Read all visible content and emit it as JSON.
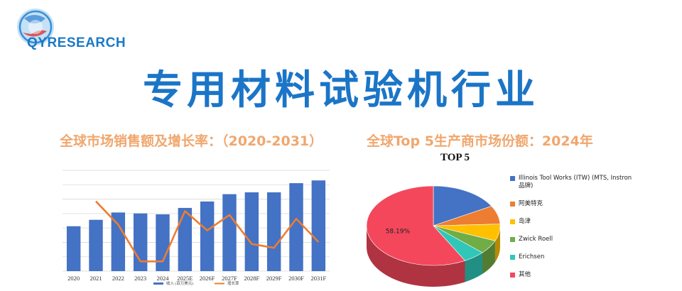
{
  "brand": {
    "logo_text": "QYRESEARCH"
  },
  "headline": "专用材料试验机行业",
  "left_subtitle": "全球市场销售额及增长率：（2020-2031）",
  "right_subtitle": "全球Top 5生产商市场份额：2024年",
  "colors": {
    "bar": "#4472c4",
    "line": "#ed7d31",
    "headline": "#1b75c7",
    "subtitle": "#f0a76e"
  },
  "chart_data": [
    {
      "type": "bar",
      "categories": [
        "2020",
        "2021",
        "2022",
        "2023",
        "2024",
        "2025E",
        "2026F",
        "2027F",
        "2028F",
        "2029F",
        "2030F",
        "2031F"
      ],
      "series": [
        {
          "name": "收入 (百万美元)",
          "type": "bar",
          "values": [
            49,
            56,
            64,
            63,
            62,
            69,
            76,
            84,
            86,
            86,
            96,
            99
          ]
        },
        {
          "name": "增长率",
          "type": "line",
          "values": [
            null,
            14,
            8,
            -1.5,
            -1.5,
            11.5,
            6.5,
            10.5,
            3,
            2,
            9.5,
            3.5
          ]
        }
      ],
      "grid": true,
      "legend": "bottom"
    },
    {
      "type": "pie",
      "title": "TOP 5",
      "labels": [
        "Illinois Tool Works (ITW) (MTS, Instron 品牌)",
        "阿美特克",
        "岛津",
        "Zwick Roell",
        "Erichsen",
        "其他"
      ],
      "values": [
        16.9,
        7.6,
        6.9,
        5.7,
        5.3,
        58.19
      ],
      "colors": [
        "#4472c4",
        "#ed7d31",
        "#ffc000",
        "#70ad47",
        "#2fc7b8",
        "#f4475c"
      ],
      "data_labels": [
        {
          "slice": 5,
          "text": "58.19%"
        }
      ],
      "legend": "right"
    }
  ]
}
